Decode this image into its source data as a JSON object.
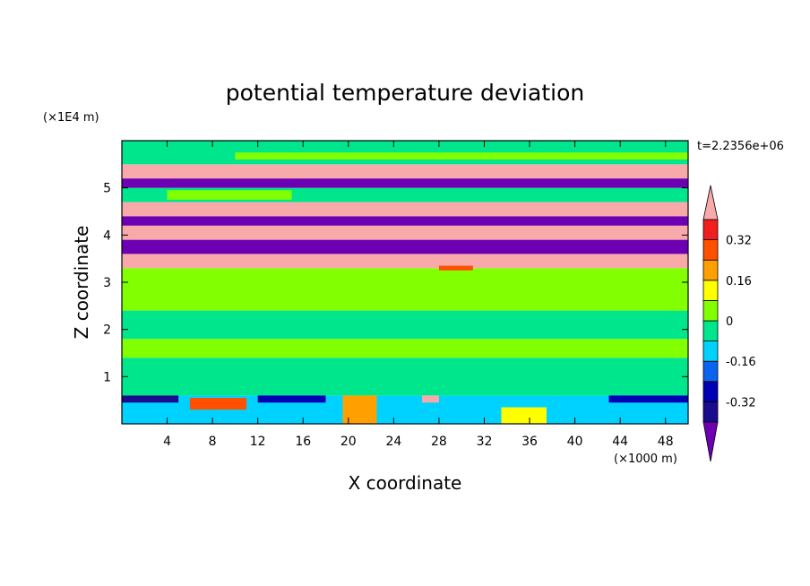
{
  "chart_data": {
    "type": "heatmap",
    "title": "potential temperature deviation",
    "xlabel": "X coordinate",
    "ylabel": "Z coordinate",
    "x_unit": "(×1000 m)",
    "y_unit": "(×1E4 m)",
    "time_label": "t=2.2356e+06",
    "xlim": [
      0,
      50
    ],
    "ylim": [
      0,
      6
    ],
    "x_ticks": [
      4,
      8,
      12,
      16,
      20,
      24,
      28,
      32,
      36,
      40,
      44,
      48
    ],
    "y_ticks": [
      1,
      2,
      3,
      4,
      5
    ],
    "colorbar": {
      "levels": [
        -0.4,
        -0.32,
        -0.24,
        -0.16,
        -0.08,
        0,
        0.08,
        0.16,
        0.24,
        0.32,
        0.4
      ],
      "labels": [
        "-0.32",
        "-0.16",
        "0",
        "0.16",
        "0.32"
      ],
      "label_values": [
        -0.32,
        -0.16,
        0,
        0.16,
        0.32
      ],
      "colors": [
        "#1a0c8c",
        "#0000b4",
        "#0a64f0",
        "#00d2ff",
        "#00e68c",
        "#82ff00",
        "#ffff00",
        "#ffa000",
        "#ff5000",
        "#f01e1e"
      ],
      "under_color": "#6e00b4",
      "over_color": "#f8aaaa"
    },
    "bands": [
      {
        "z_bottom": 0.0,
        "z_top": 0.6,
        "color": "#00d2ff"
      },
      {
        "z_bottom": 0.6,
        "z_top": 1.4,
        "color": "#00e68c"
      },
      {
        "z_bottom": 1.4,
        "z_top": 1.8,
        "color": "#82ff00"
      },
      {
        "z_bottom": 1.8,
        "z_top": 2.4,
        "color": "#00e68c"
      },
      {
        "z_bottom": 2.4,
        "z_top": 3.3,
        "color": "#82ff00"
      },
      {
        "z_bottom": 3.3,
        "z_top": 3.6,
        "color": "#f8aaaa"
      },
      {
        "z_bottom": 3.6,
        "z_top": 3.9,
        "color": "#6e00b4"
      },
      {
        "z_bottom": 3.9,
        "z_top": 4.2,
        "color": "#f8aaaa"
      },
      {
        "z_bottom": 4.2,
        "z_top": 4.4,
        "color": "#6e00b4"
      },
      {
        "z_bottom": 4.4,
        "z_top": 4.7,
        "color": "#f8aaaa"
      },
      {
        "z_bottom": 4.7,
        "z_top": 5.0,
        "color": "#00e68c"
      },
      {
        "z_bottom": 5.0,
        "z_top": 5.2,
        "color": "#6e00b4"
      },
      {
        "z_bottom": 5.2,
        "z_top": 5.5,
        "color": "#f8aaaa"
      },
      {
        "z_bottom": 5.5,
        "z_top": 6.0,
        "color": "#00e68c"
      }
    ],
    "patches": [
      {
        "x": [
          19.5,
          22.5
        ],
        "z": [
          0.0,
          0.6
        ],
        "color": "#ffa000"
      },
      {
        "x": [
          26.5,
          28.0
        ],
        "z": [
          0.45,
          0.6
        ],
        "color": "#f8aaaa"
      },
      {
        "x": [
          33.5,
          37.5
        ],
        "z": [
          0.0,
          0.35
        ],
        "color": "#ffff00"
      },
      {
        "x": [
          6.0,
          11.0
        ],
        "z": [
          0.3,
          0.55
        ],
        "color": "#ff5000"
      },
      {
        "x": [
          0.0,
          5.0
        ],
        "z": [
          0.45,
          0.6
        ],
        "color": "#1a0c8c"
      },
      {
        "x": [
          12.0,
          18.0
        ],
        "z": [
          0.45,
          0.6
        ],
        "color": "#0000b4"
      },
      {
        "x": [
          43.0,
          50.0
        ],
        "z": [
          0.45,
          0.6
        ],
        "color": "#0000b4"
      },
      {
        "x": [
          28.0,
          31.0
        ],
        "z": [
          3.25,
          3.35
        ],
        "color": "#ff5000"
      },
      {
        "x": [
          10.0,
          50.0
        ],
        "z": [
          5.6,
          5.75
        ],
        "color": "#82ff00"
      },
      {
        "x": [
          4.0,
          15.0
        ],
        "z": [
          4.75,
          4.95
        ],
        "color": "#82ff00"
      }
    ]
  }
}
